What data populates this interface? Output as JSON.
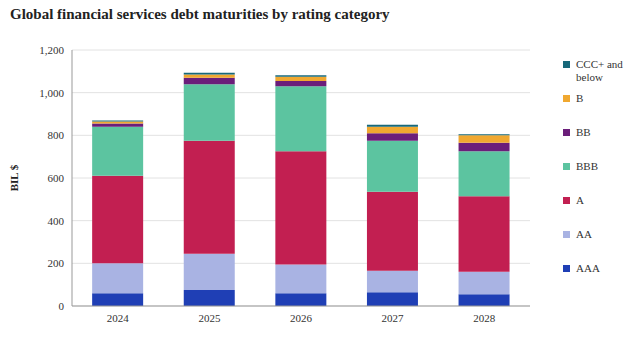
{
  "chart_data": {
    "type": "bar",
    "title": "Global financial services debt maturities by rating category",
    "y_label": "BIL $",
    "categories": [
      "2024",
      "2025",
      "2026",
      "2027",
      "2028"
    ],
    "stacked": true,
    "grid": true,
    "legend": "right",
    "ylim": [
      0,
      1200
    ],
    "yticks": [
      0,
      200,
      400,
      600,
      800,
      {
        "value": 1000,
        "label": "1,000"
      },
      {
        "value": 1200,
        "label": "1,200"
      }
    ],
    "series": [
      {
        "name": "AAA",
        "color": "#1f3fb5",
        "values": [
          60,
          75,
          60,
          65,
          55
        ]
      },
      {
        "name": "AA",
        "color": "#a9b3e3",
        "values": [
          140,
          170,
          135,
          100,
          105
        ]
      },
      {
        "name": "A",
        "color": "#c21f51",
        "values": [
          410,
          530,
          530,
          370,
          355
        ]
      },
      {
        "name": "BBB",
        "color": "#5cc4a0",
        "values": [
          230,
          265,
          305,
          240,
          210
        ]
      },
      {
        "name": "BB",
        "color": "#6b1e7a",
        "values": [
          15,
          30,
          25,
          35,
          40
        ]
      },
      {
        "name": "B",
        "color": "#f0a830",
        "values": [
          10,
          15,
          20,
          30,
          35
        ]
      },
      {
        "name": "CCC+ and below",
        "color": "#17687a",
        "values": [
          5,
          8,
          7,
          10,
          5
        ]
      }
    ]
  }
}
